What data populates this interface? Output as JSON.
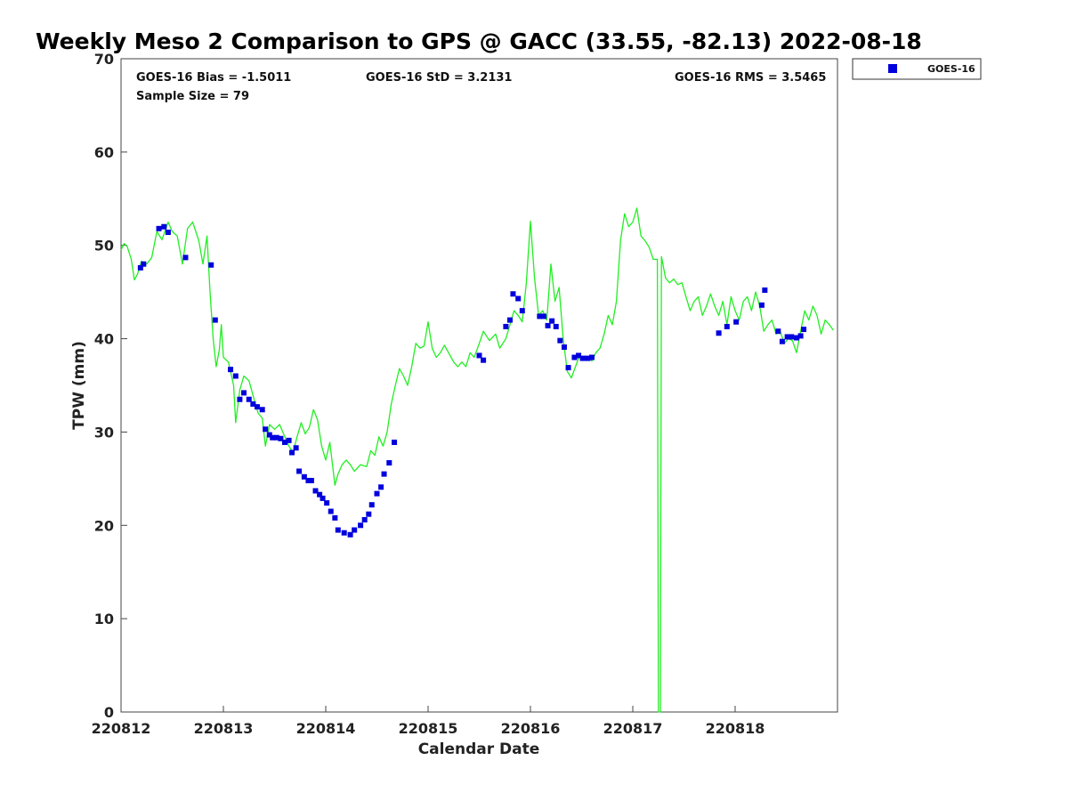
{
  "chart_data": {
    "type": "line",
    "title": "Weekly Meso 2 Comparison to GPS @ GACC (33.55, -82.13) 2022-08-18",
    "xlabel": "Calendar Date",
    "ylabel": "TPW (mm)",
    "xlim": [
      220812,
      220819
    ],
    "ylim": [
      0,
      70
    ],
    "x_ticks": [
      "220812",
      "220813",
      "220814",
      "220815",
      "220816",
      "220817",
      "220818"
    ],
    "y_ticks": [
      0,
      10,
      20,
      30,
      40,
      50,
      60,
      70
    ],
    "grid": false,
    "legend_position": "top-right, outside plot",
    "stats": {
      "bias": "GOES-16 Bias = -1.5011",
      "std": "GOES-16 StD = 3.2131",
      "rms": "GOES-16 RMS = 3.5465",
      "sample": "Sample Size = 79"
    },
    "series": [
      {
        "name": "GOES-16",
        "style": "square-markers",
        "color": "#0000dd",
        "points": [
          [
            220812.19,
            47.6
          ],
          [
            220812.22,
            48.0
          ],
          [
            220812.37,
            51.8
          ],
          [
            220812.42,
            52.0
          ],
          [
            220812.46,
            51.4
          ],
          [
            220812.63,
            48.7
          ],
          [
            220812.88,
            47.9
          ],
          [
            220812.92,
            42.0
          ],
          [
            220813.07,
            36.7
          ],
          [
            220813.12,
            36.0
          ],
          [
            220813.16,
            33.5
          ],
          [
            220813.2,
            34.2
          ],
          [
            220813.25,
            33.5
          ],
          [
            220813.29,
            33.0
          ],
          [
            220813.33,
            32.7
          ],
          [
            220813.38,
            32.4
          ],
          [
            220813.41,
            30.3
          ],
          [
            220813.45,
            29.7
          ],
          [
            220813.48,
            29.4
          ],
          [
            220813.52,
            29.4
          ],
          [
            220813.56,
            29.3
          ],
          [
            220813.6,
            28.9
          ],
          [
            220813.64,
            29.1
          ],
          [
            220813.67,
            27.8
          ],
          [
            220813.71,
            28.3
          ],
          [
            220813.74,
            25.8
          ],
          [
            220813.79,
            25.2
          ],
          [
            220813.83,
            24.8
          ],
          [
            220813.86,
            24.8
          ],
          [
            220813.9,
            23.7
          ],
          [
            220813.94,
            23.3
          ],
          [
            220813.97,
            22.9
          ],
          [
            220814.01,
            22.4
          ],
          [
            220814.05,
            21.5
          ],
          [
            220814.09,
            20.8
          ],
          [
            220814.12,
            19.5
          ],
          [
            220814.18,
            19.2
          ],
          [
            220814.24,
            19.0
          ],
          [
            220814.28,
            19.5
          ],
          [
            220814.34,
            20.0
          ],
          [
            220814.38,
            20.6
          ],
          [
            220814.42,
            21.2
          ],
          [
            220814.45,
            22.2
          ],
          [
            220814.5,
            23.4
          ],
          [
            220814.54,
            24.1
          ],
          [
            220814.57,
            25.5
          ],
          [
            220814.62,
            26.7
          ],
          [
            220814.67,
            28.9
          ],
          [
            220815.5,
            38.2
          ],
          [
            220815.54,
            37.7
          ],
          [
            220815.76,
            41.3
          ],
          [
            220815.8,
            42.0
          ],
          [
            220815.83,
            44.8
          ],
          [
            220815.88,
            44.3
          ],
          [
            220815.92,
            43.0
          ],
          [
            220816.09,
            42.4
          ],
          [
            220816.13,
            42.4
          ],
          [
            220816.17,
            41.4
          ],
          [
            220816.21,
            41.9
          ],
          [
            220816.25,
            41.3
          ],
          [
            220816.29,
            39.8
          ],
          [
            220816.33,
            39.1
          ],
          [
            220816.37,
            36.9
          ],
          [
            220816.43,
            38.0
          ],
          [
            220816.47,
            38.2
          ],
          [
            220816.51,
            37.9
          ],
          [
            220816.56,
            37.9
          ],
          [
            220816.6,
            38.0
          ],
          [
            220817.84,
            40.6
          ],
          [
            220817.92,
            41.3
          ],
          [
            220818.01,
            41.8
          ],
          [
            220818.26,
            43.6
          ],
          [
            220818.29,
            45.2
          ],
          [
            220818.42,
            40.8
          ],
          [
            220818.46,
            39.7
          ],
          [
            220818.51,
            40.2
          ],
          [
            220818.55,
            40.2
          ],
          [
            220818.6,
            40.1
          ],
          [
            220818.64,
            40.3
          ],
          [
            220818.67,
            41.0
          ]
        ]
      },
      {
        "style": "line",
        "color": "#22ee22",
        "points": [
          [
            220812.0,
            49.5
          ],
          [
            220812.03,
            50.2
          ],
          [
            220812.06,
            49.9
          ],
          [
            220812.1,
            48.5
          ],
          [
            220812.13,
            46.3
          ],
          [
            220812.16,
            46.9
          ],
          [
            220812.2,
            48.3
          ],
          [
            220812.25,
            48.0
          ],
          [
            220812.3,
            48.7
          ],
          [
            220812.35,
            51.5
          ],
          [
            220812.4,
            50.6
          ],
          [
            220812.46,
            52.5
          ],
          [
            220812.5,
            51.5
          ],
          [
            220812.55,
            51.0
          ],
          [
            220812.6,
            48.0
          ],
          [
            220812.65,
            51.8
          ],
          [
            220812.7,
            52.5
          ],
          [
            220812.76,
            50.5
          ],
          [
            220812.8,
            48.0
          ],
          [
            220812.84,
            51.0
          ],
          [
            220812.87,
            45.0
          ],
          [
            220812.9,
            40.0
          ],
          [
            220812.93,
            37.0
          ],
          [
            220812.96,
            38.8
          ],
          [
            220812.98,
            41.5
          ],
          [
            220813.0,
            38.0
          ],
          [
            220813.05,
            37.5
          ],
          [
            220813.1,
            35.0
          ],
          [
            220813.12,
            31.0
          ],
          [
            220813.16,
            34.5
          ],
          [
            220813.2,
            36.0
          ],
          [
            220813.25,
            35.5
          ],
          [
            220813.3,
            33.5
          ],
          [
            220813.34,
            32.0
          ],
          [
            220813.38,
            31.5
          ],
          [
            220813.41,
            28.5
          ],
          [
            220813.45,
            30.8
          ],
          [
            220813.5,
            30.3
          ],
          [
            220813.55,
            30.8
          ],
          [
            220813.6,
            29.5
          ],
          [
            220813.64,
            28.5
          ],
          [
            220813.68,
            27.8
          ],
          [
            220813.72,
            29.5
          ],
          [
            220813.76,
            31.0
          ],
          [
            220813.8,
            29.8
          ],
          [
            220813.84,
            30.5
          ],
          [
            220813.88,
            32.4
          ],
          [
            220813.92,
            31.3
          ],
          [
            220813.96,
            28.5
          ],
          [
            220814.0,
            27.0
          ],
          [
            220814.04,
            28.9
          ],
          [
            220814.09,
            24.3
          ],
          [
            220814.12,
            25.5
          ],
          [
            220814.16,
            26.5
          ],
          [
            220814.2,
            27.0
          ],
          [
            220814.24,
            26.5
          ],
          [
            220814.28,
            25.8
          ],
          [
            220814.34,
            26.5
          ],
          [
            220814.4,
            26.3
          ],
          [
            220814.44,
            28.0
          ],
          [
            220814.48,
            27.5
          ],
          [
            220814.52,
            29.5
          ],
          [
            220814.56,
            28.5
          ],
          [
            220814.6,
            30.0
          ],
          [
            220814.64,
            33.0
          ],
          [
            220814.68,
            35.0
          ],
          [
            220814.72,
            36.8
          ],
          [
            220814.76,
            36.0
          ],
          [
            220814.8,
            35.0
          ],
          [
            220814.84,
            37.0
          ],
          [
            220814.88,
            39.5
          ],
          [
            220814.92,
            39.0
          ],
          [
            220814.96,
            39.2
          ],
          [
            220815.0,
            41.8
          ],
          [
            220815.04,
            39.0
          ],
          [
            220815.08,
            38.0
          ],
          [
            220815.12,
            38.5
          ],
          [
            220815.16,
            39.3
          ],
          [
            220815.2,
            38.5
          ],
          [
            220815.25,
            37.5
          ],
          [
            220815.29,
            37.0
          ],
          [
            220815.33,
            37.5
          ],
          [
            220815.37,
            37.0
          ],
          [
            220815.41,
            38.5
          ],
          [
            220815.45,
            38.0
          ],
          [
            220815.5,
            39.5
          ],
          [
            220815.54,
            40.8
          ],
          [
            220815.6,
            39.8
          ],
          [
            220815.66,
            40.5
          ],
          [
            220815.7,
            39.0
          ],
          [
            220815.76,
            40.0
          ],
          [
            220815.8,
            41.5
          ],
          [
            220815.84,
            43.0
          ],
          [
            220815.88,
            42.5
          ],
          [
            220815.92,
            41.8
          ],
          [
            220815.96,
            46.0
          ],
          [
            220816.0,
            52.6
          ],
          [
            220816.04,
            46.5
          ],
          [
            220816.08,
            42.5
          ],
          [
            220816.12,
            43.0
          ],
          [
            220816.16,
            42.0
          ],
          [
            220816.2,
            48.0
          ],
          [
            220816.24,
            44.0
          ],
          [
            220816.28,
            45.5
          ],
          [
            220816.32,
            40.0
          ],
          [
            220816.36,
            36.5
          ],
          [
            220816.4,
            35.8
          ],
          [
            220816.44,
            37.0
          ],
          [
            220816.48,
            38.2
          ],
          [
            220816.52,
            37.8
          ],
          [
            220816.56,
            38.1
          ],
          [
            220816.6,
            37.6
          ],
          [
            220816.64,
            38.5
          ],
          [
            220816.68,
            39.0
          ],
          [
            220816.72,
            40.5
          ],
          [
            220816.76,
            42.5
          ],
          [
            220816.8,
            41.5
          ],
          [
            220816.84,
            44.0
          ],
          [
            220816.88,
            50.5
          ],
          [
            220816.92,
            53.4
          ],
          [
            220816.96,
            52.0
          ],
          [
            220817.0,
            52.5
          ],
          [
            220817.04,
            54.0
          ],
          [
            220817.08,
            51.0
          ],
          [
            220817.12,
            50.5
          ],
          [
            220817.16,
            49.8
          ],
          [
            220817.2,
            48.5
          ],
          [
            220817.24,
            48.5
          ],
          [
            220817.25,
            0.0
          ],
          [
            220817.27,
            0.0
          ],
          [
            220817.28,
            48.8
          ],
          [
            220817.32,
            46.5
          ],
          [
            220817.36,
            46.0
          ],
          [
            220817.4,
            46.4
          ],
          [
            220817.44,
            45.8
          ],
          [
            220817.48,
            46.0
          ],
          [
            220817.52,
            44.5
          ],
          [
            220817.56,
            43.0
          ],
          [
            220817.6,
            44.0
          ],
          [
            220817.64,
            44.5
          ],
          [
            220817.68,
            42.5
          ],
          [
            220817.72,
            43.5
          ],
          [
            220817.76,
            44.8
          ],
          [
            220817.8,
            43.5
          ],
          [
            220817.84,
            42.5
          ],
          [
            220817.88,
            44.0
          ],
          [
            220817.92,
            41.5
          ],
          [
            220817.96,
            44.5
          ],
          [
            220818.0,
            43.0
          ],
          [
            220818.04,
            42.0
          ],
          [
            220818.08,
            44.0
          ],
          [
            220818.12,
            44.5
          ],
          [
            220818.16,
            43.0
          ],
          [
            220818.2,
            45.0
          ],
          [
            220818.24,
            43.5
          ],
          [
            220818.28,
            40.8
          ],
          [
            220818.32,
            41.5
          ],
          [
            220818.36,
            42.0
          ],
          [
            220818.4,
            40.5
          ],
          [
            220818.44,
            40.8
          ],
          [
            220818.48,
            39.5
          ],
          [
            220818.52,
            40.0
          ],
          [
            220818.56,
            39.8
          ],
          [
            220818.6,
            38.5
          ],
          [
            220818.64,
            40.8
          ],
          [
            220818.68,
            43.0
          ],
          [
            220818.72,
            42.0
          ],
          [
            220818.76,
            43.5
          ],
          [
            220818.8,
            42.5
          ],
          [
            220818.84,
            40.5
          ],
          [
            220818.88,
            42.0
          ],
          [
            220818.92,
            41.5
          ],
          [
            220818.96,
            40.9
          ]
        ]
      }
    ]
  }
}
